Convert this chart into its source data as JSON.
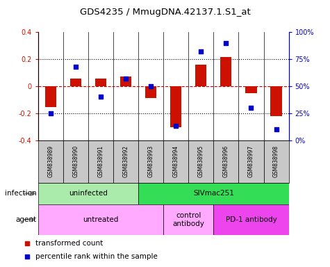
{
  "title": "GDS4235 / MmugDNA.42137.1.S1_at",
  "samples": [
    "GSM838989",
    "GSM838990",
    "GSM838991",
    "GSM838992",
    "GSM838993",
    "GSM838994",
    "GSM838995",
    "GSM838996",
    "GSM838997",
    "GSM838998"
  ],
  "transformed_count": [
    -0.155,
    0.055,
    0.055,
    0.07,
    -0.09,
    -0.305,
    0.16,
    0.215,
    -0.05,
    -0.22
  ],
  "percentile_rank": [
    25,
    68,
    40,
    57,
    50,
    13,
    82,
    90,
    30,
    10
  ],
  "ylim_left": [
    -0.4,
    0.4
  ],
  "ylim_right": [
    0,
    100
  ],
  "infection_groups": [
    {
      "label": "uninfected",
      "start": 0,
      "end": 4,
      "color": "#aaeaaa"
    },
    {
      "label": "SIVmac251",
      "start": 4,
      "end": 10,
      "color": "#33dd55"
    }
  ],
  "agent_groups": [
    {
      "label": "untreated",
      "start": 0,
      "end": 5,
      "color": "#ffaaff"
    },
    {
      "label": "control\nantibody",
      "start": 5,
      "end": 7,
      "color": "#ffaaff"
    },
    {
      "label": "PD-1 antibody",
      "start": 7,
      "end": 10,
      "color": "#ee44ee"
    }
  ],
  "bar_color": "#CC1100",
  "dot_color": "#0000CC",
  "dashed_zero_color": "#CC0000",
  "plot_bg_color": "#FFFFFF",
  "sample_bg_color": "#C8C8C8",
  "left_tick_labels": [
    "-0.4",
    "-0.2",
    "0",
    "0.2",
    "0.4"
  ],
  "left_tick_vals": [
    -0.4,
    -0.2,
    0.0,
    0.2,
    0.4
  ],
  "right_tick_labels": [
    "0%",
    "25%",
    "50%",
    "75%",
    "100%"
  ],
  "right_tick_vals": [
    0,
    25,
    50,
    75,
    100
  ]
}
